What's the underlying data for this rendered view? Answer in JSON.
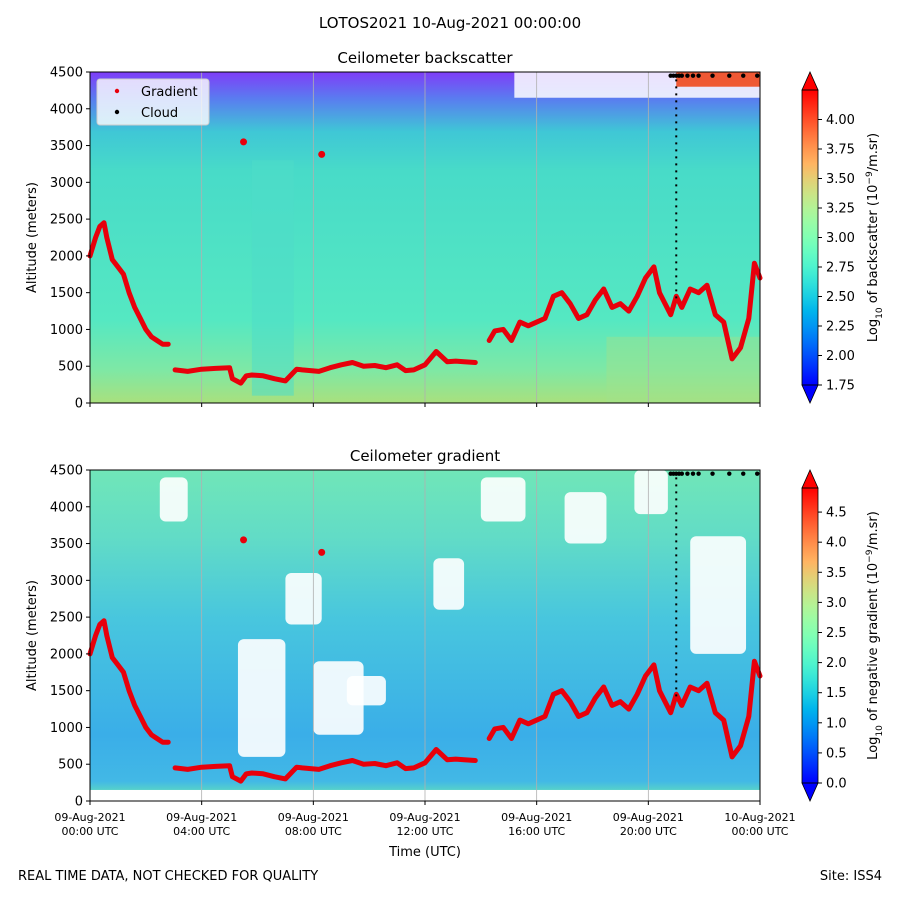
{
  "suptitle": "LOTOS2021 10-Aug-2021 00:00:00",
  "footer": {
    "left": "REAL TIME DATA, NOT CHECKED FOR QUALITY",
    "right": "Site: ISS4"
  },
  "colors": {
    "gradient_marker": "#e8000b",
    "cloud_marker": "#000000",
    "colormap": "rainbow",
    "grid": "#b0b0b0"
  },
  "chart_data": [
    {
      "type": "heatmap",
      "title": "Ceilometer backscatter",
      "xlabel": "",
      "ylabel": "Altitude (meters)",
      "ylim": [
        0,
        4500
      ],
      "yticks": [
        "0",
        "500",
        "1000",
        "1500",
        "2000",
        "2500",
        "3000",
        "3500",
        "4000",
        "4500"
      ],
      "xlim": [
        "09-Aug-2021 00:00 UTC",
        "10-Aug-2021 00:00 UTC"
      ],
      "grid": "vertical",
      "legend": {
        "placement": "top-left",
        "entries": [
          {
            "label": "Gradient",
            "color": "#e8000b"
          },
          {
            "label": "Cloud",
            "color": "#000000"
          }
        ]
      },
      "colorbar": {
        "label_parts": [
          "Log",
          "10",
          " of backscatter (10",
          "−9",
          "/m.sr)"
        ],
        "range": [
          1.75,
          4.25
        ],
        "ticks": [
          "1.75",
          "2.00",
          "2.25",
          "2.50",
          "2.75",
          "3.00",
          "3.25",
          "3.50",
          "3.75",
          "4.00"
        ]
      }
    },
    {
      "type": "heatmap",
      "title": "Ceilometer gradient",
      "xlabel": "Time (UTC)",
      "ylabel": "Altitude (meters)",
      "ylim": [
        0,
        4500
      ],
      "yticks": [
        "0",
        "500",
        "1000",
        "1500",
        "2000",
        "2500",
        "3000",
        "3500",
        "4000",
        "4500"
      ],
      "xticks": [
        {
          "date": "09-Aug-2021",
          "time": "00:00 UTC"
        },
        {
          "date": "09-Aug-2021",
          "time": "04:00 UTC"
        },
        {
          "date": "09-Aug-2021",
          "time": "08:00 UTC"
        },
        {
          "date": "09-Aug-2021",
          "time": "12:00 UTC"
        },
        {
          "date": "09-Aug-2021",
          "time": "16:00 UTC"
        },
        {
          "date": "09-Aug-2021",
          "time": "20:00 UTC"
        },
        {
          "date": "10-Aug-2021",
          "time": "00:00 UTC"
        }
      ],
      "grid": "vertical",
      "colorbar": {
        "label_parts": [
          "Log",
          "10",
          " of negative gradient (10",
          "−9",
          "/m.sr)"
        ],
        "range": [
          0.0,
          4.9
        ],
        "ticks": [
          "0.0",
          "0.5",
          "1.0",
          "1.5",
          "2.0",
          "2.5",
          "3.0",
          "3.5",
          "4.0",
          "4.5"
        ]
      }
    }
  ],
  "gradient_series": {
    "name": "Gradient",
    "x_hours": [
      0,
      0.2,
      0.35,
      0.5,
      0.6,
      0.8,
      1.0,
      1.2,
      1.4,
      1.6,
      1.8,
      2.0,
      2.2,
      2.4,
      2.6,
      2.8,
      3.0,
      3.05,
      3.5,
      4.0,
      4.5,
      5.0,
      5.1,
      5.4,
      5.6,
      5.8,
      6.2,
      6.6,
      7.0,
      7.4,
      7.6,
      7.9,
      8.2,
      8.6,
      9.0,
      9.4,
      9.8,
      10.2,
      10.6,
      11.0,
      11.3,
      11.6,
      12.0,
      12.4,
      12.8,
      13.1,
      13.4,
      13.8,
      14.2,
      14.3,
      14.5,
      14.8,
      15.1,
      15.4,
      15.7,
      16.0,
      16.3,
      16.6,
      16.9,
      17.2,
      17.5,
      17.8,
      18.1,
      18.4,
      18.7,
      19.0,
      19.3,
      19.6,
      19.9,
      20.2,
      20.4,
      20.6,
      20.8,
      21.0,
      21.2,
      21.5,
      21.8,
      22.1,
      22.4,
      22.7,
      23.0,
      23.3,
      23.6,
      23.8,
      24.0
    ],
    "y_m": [
      2000,
      2250,
      2400,
      2450,
      2250,
      1950,
      1850,
      1750,
      1500,
      1300,
      1150,
      1000,
      900,
      850,
      800,
      800,
      null,
      450,
      430,
      460,
      470,
      480,
      330,
      270,
      370,
      380,
      370,
      330,
      300,
      460,
      450,
      440,
      430,
      480,
      520,
      550,
      500,
      510,
      480,
      520,
      440,
      450,
      520,
      700,
      560,
      570,
      560,
      550,
      null,
      850,
      980,
      1000,
      850,
      1100,
      1050,
      1100,
      1150,
      1450,
      1500,
      1350,
      1150,
      1200,
      1400,
      1550,
      1300,
      1350,
      1250,
      1450,
      1700,
      1850,
      1500,
      1350,
      1200,
      1450,
      1300,
      1550,
      1500,
      1600,
      1200,
      1100,
      600,
      750,
      1150,
      1900,
      1700
    ]
  },
  "cloud_hours": [
    20.8,
    20.9,
    21.0,
    21.1,
    21.2,
    21.4,
    21.6,
    21.8,
    22.3,
    22.9,
    23.4,
    23.9
  ],
  "upper_blobs": [
    {
      "x_hours": 5.5,
      "y_m": 3550
    },
    {
      "x_hours": 8.3,
      "y_m": 3380
    }
  ]
}
